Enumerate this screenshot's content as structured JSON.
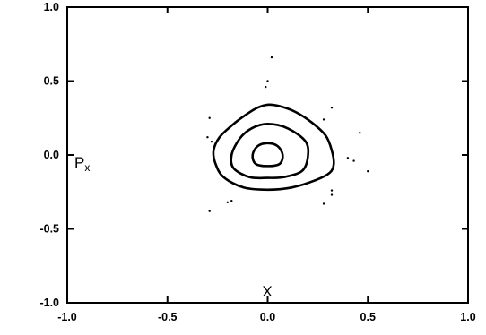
{
  "chart_data": {
    "type": "scatter",
    "title": "",
    "xlabel": "X",
    "ylabel_main": "P",
    "ylabel_sub": "x",
    "xlim": [
      -1.0,
      1.0
    ],
    "ylim": [
      -1.0,
      1.0
    ],
    "grid": false,
    "x_ticks": [
      -1.0,
      -0.5,
      0.0,
      0.5,
      1.0
    ],
    "x_tick_labels": [
      "-1.0",
      "-0.5",
      "0.0",
      "0.5",
      "1.0"
    ],
    "y_ticks": [
      -1.0,
      -0.5,
      0.0,
      0.5,
      1.0
    ],
    "y_tick_labels": [
      "-1.0",
      "-0.5",
      "0.0",
      "0.5",
      "1.0"
    ],
    "contours": [
      {
        "points": [
          [
            0.0,
            0.08
          ],
          [
            0.05,
            0.06
          ],
          [
            0.075,
            0.0
          ],
          [
            0.06,
            -0.06
          ],
          [
            0.0,
            -0.075
          ],
          [
            -0.06,
            -0.06
          ],
          [
            -0.075,
            0.0
          ],
          [
            -0.05,
            0.06
          ]
        ]
      },
      {
        "points": [
          [
            0.0,
            0.21
          ],
          [
            0.1,
            0.18
          ],
          [
            0.19,
            0.09
          ],
          [
            0.2,
            -0.02
          ],
          [
            0.17,
            -0.11
          ],
          [
            0.08,
            -0.15
          ],
          [
            0.0,
            -0.155
          ],
          [
            -0.09,
            -0.15
          ],
          [
            -0.17,
            -0.09
          ],
          [
            -0.18,
            0.0
          ],
          [
            -0.14,
            0.11
          ],
          [
            -0.08,
            0.18
          ]
        ]
      },
      {
        "points": [
          [
            0.0,
            0.34
          ],
          [
            0.06,
            0.33
          ],
          [
            0.14,
            0.29
          ],
          [
            0.22,
            0.22
          ],
          [
            0.29,
            0.13
          ],
          [
            0.32,
            0.03
          ],
          [
            0.33,
            -0.06
          ],
          [
            0.31,
            -0.12
          ],
          [
            0.24,
            -0.17
          ],
          [
            0.12,
            -0.22
          ],
          [
            0.0,
            -0.235
          ],
          [
            -0.12,
            -0.22
          ],
          [
            -0.22,
            -0.15
          ],
          [
            -0.26,
            -0.06
          ],
          [
            -0.27,
            0.03
          ],
          [
            -0.24,
            0.12
          ],
          [
            -0.17,
            0.21
          ],
          [
            -0.1,
            0.28
          ],
          [
            -0.05,
            0.32
          ]
        ]
      }
    ],
    "points": [
      {
        "x": 0.02,
        "y": 0.66
      },
      {
        "x": 0.0,
        "y": 0.5
      },
      {
        "x": -0.01,
        "y": 0.46
      },
      {
        "x": -0.29,
        "y": 0.25
      },
      {
        "x": -0.3,
        "y": 0.12
      },
      {
        "x": -0.28,
        "y": 0.09
      },
      {
        "x": 0.28,
        "y": 0.24
      },
      {
        "x": 0.32,
        "y": 0.32
      },
      {
        "x": 0.46,
        "y": 0.15
      },
      {
        "x": 0.4,
        "y": -0.02
      },
      {
        "x": 0.43,
        "y": -0.04
      },
      {
        "x": 0.5,
        "y": -0.11
      },
      {
        "x": 0.32,
        "y": -0.24
      },
      {
        "x": 0.32,
        "y": -0.27
      },
      {
        "x": 0.28,
        "y": -0.33
      },
      {
        "x": -0.18,
        "y": -0.31
      },
      {
        "x": -0.2,
        "y": -0.32
      },
      {
        "x": -0.29,
        "y": -0.38
      }
    ]
  }
}
